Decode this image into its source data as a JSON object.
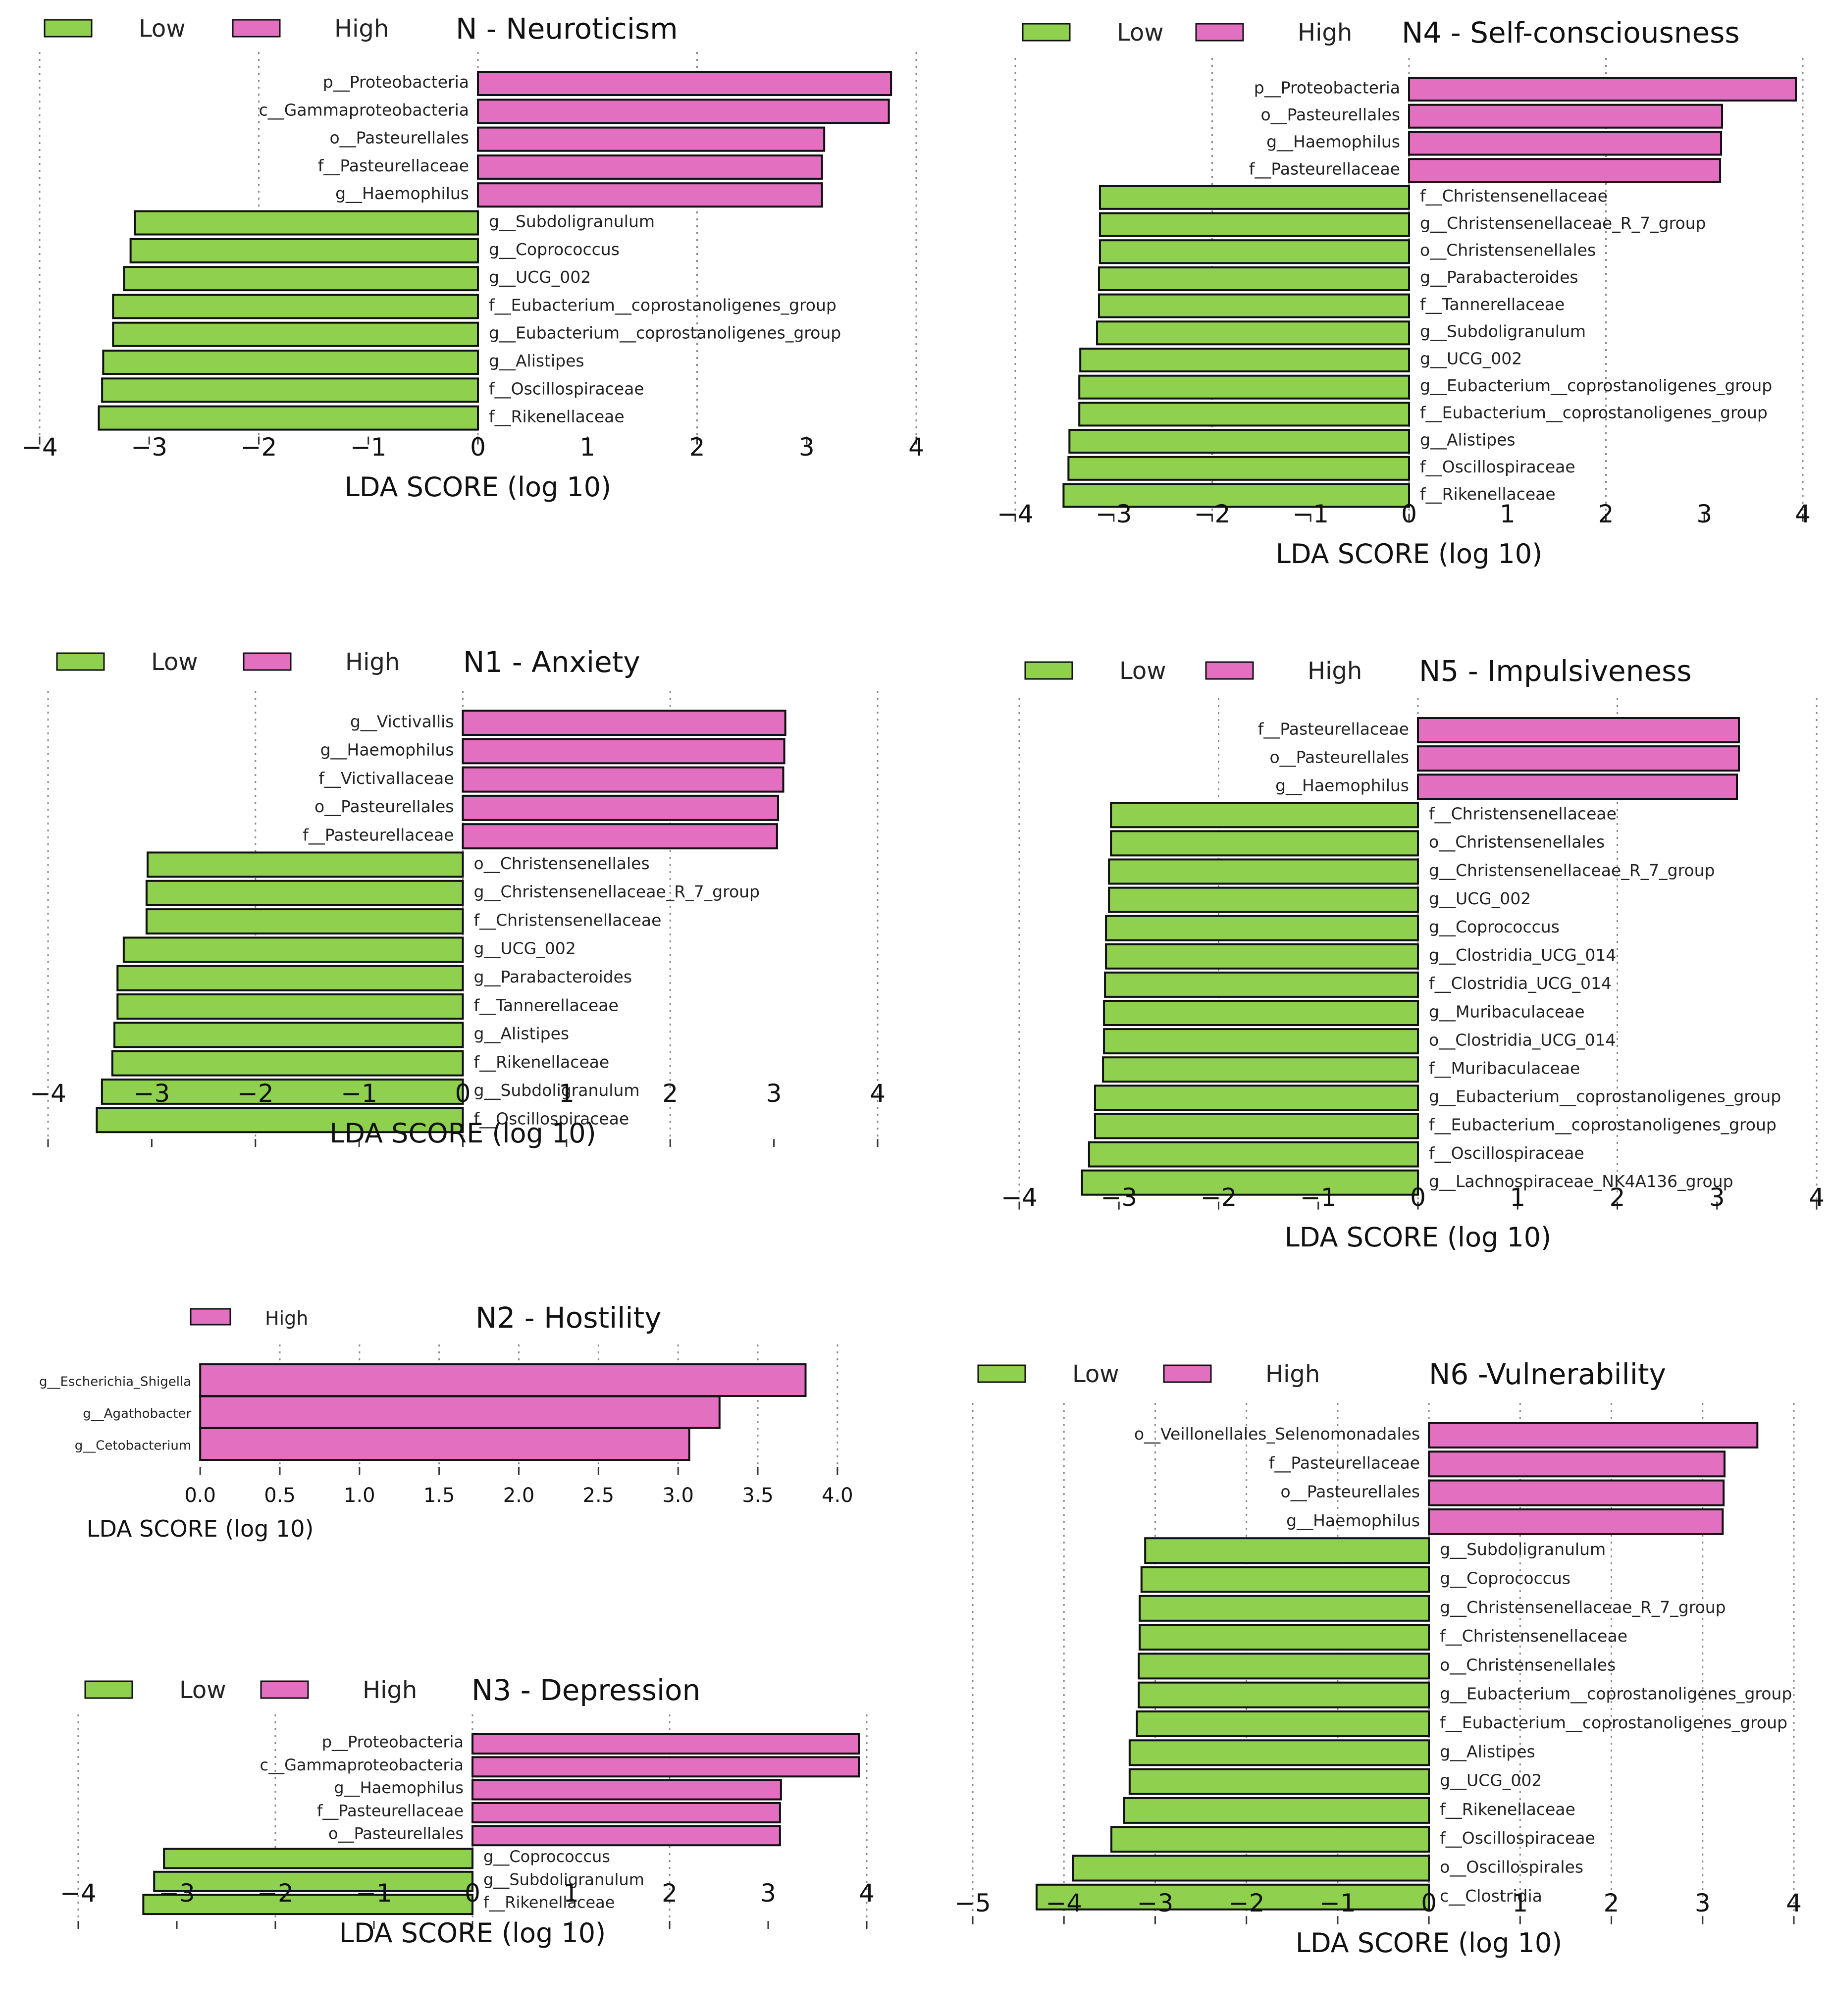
{
  "colors": {
    "low": "#8fd14f",
    "high": "#e26fbf",
    "edge": "#111111",
    "grid": "#888888"
  },
  "chart_data": [
    {
      "type": "bar",
      "title": "N - Neuroticism",
      "xlabel": "LDA SCORE (log 10)",
      "xlim": [
        -4,
        4
      ],
      "ticks": [
        -4,
        -3,
        -2,
        -1,
        0,
        1,
        2,
        3,
        4
      ],
      "tick_labels": [
        "−4",
        "−3",
        "−2",
        "−1",
        "0",
        "1",
        "2",
        "3",
        "4"
      ],
      "legend": [
        "Low",
        "High"
      ],
      "categories": [
        "p__Proteobacteria",
        "c__Gammaproteobacteria",
        "o__Pasteurellales",
        "f__Pasteurellaceae",
        "g__Haemophilus",
        "g__Subdoligranulum",
        "g__Coprococcus",
        "g__UCG_002",
        "f__Eubacterium__coprostanoligenes_group",
        "g__Eubacterium__coprostanoligenes_group",
        "g__Alistipes",
        "f__Oscillospiraceae",
        "f__Rikenellaceae"
      ],
      "values": [
        3.77,
        3.75,
        3.16,
        3.14,
        3.14,
        -3.13,
        -3.17,
        -3.23,
        -3.33,
        -3.33,
        -3.42,
        -3.43,
        -3.46
      ]
    },
    {
      "type": "bar",
      "title": "N4 - Self-consciousness",
      "xlabel": "LDA SCORE (log 10)",
      "xlim": [
        -4,
        4
      ],
      "ticks": [
        -4,
        -3,
        -2,
        -1,
        0,
        1,
        2,
        3,
        4
      ],
      "tick_labels": [
        "−4",
        "−3",
        "−2",
        "−1",
        "0",
        "1",
        "2",
        "3",
        "4"
      ],
      "legend": [
        "Low",
        "High"
      ],
      "categories": [
        "p__Proteobacteria",
        "o__Pasteurellales",
        "g__Haemophilus",
        "f__Pasteurellaceae",
        "f__Christensenellaceae",
        "g__Christensenellaceae_R_7_group",
        "o__Christensenellales",
        "g__Parabacteroides",
        "f__Tannerellaceae",
        "g__Subdoligranulum",
        "g__UCG_002",
        "g__Eubacterium__coprostanoligenes_group",
        "f__Eubacterium__coprostanoligenes_group",
        "g__Alistipes",
        "f__Oscillospiraceae",
        "f__Rikenellaceae"
      ],
      "values": [
        3.93,
        3.18,
        3.17,
        3.16,
        -3.14,
        -3.14,
        -3.14,
        -3.15,
        -3.15,
        -3.17,
        -3.34,
        -3.35,
        -3.35,
        -3.45,
        -3.46,
        -3.51
      ]
    },
    {
      "type": "bar",
      "title": "N1 - Anxiety",
      "xlabel": "LDA SCORE (log 10)",
      "xlim": [
        -4,
        4
      ],
      "ticks": [
        -4,
        -3,
        -2,
        -1,
        0,
        1,
        2,
        3,
        4
      ],
      "tick_labels": [
        "−4",
        "−3",
        "−2",
        "−1",
        "0",
        "1",
        "2",
        "3",
        "4"
      ],
      "legend": [
        "Low",
        "High"
      ],
      "categories": [
        "g__Victivallis",
        "g__Haemophilus",
        "f__Victivallaceae",
        "o__Pasteurellales",
        "f__Pasteurellaceae",
        "o__Christensenellales",
        "g__Christensenellaceae_R_7_group",
        "f__Christensenellaceae",
        "g__UCG_002",
        "g__Parabacteroides",
        "f__Tannerellaceae",
        "g__Alistipes",
        "f__Rikenellaceae",
        "g__Subdoligranulum",
        "f__Oscillospiraceae"
      ],
      "values": [
        3.11,
        3.1,
        3.09,
        3.04,
        3.03,
        -3.04,
        -3.05,
        -3.05,
        -3.27,
        -3.33,
        -3.33,
        -3.36,
        -3.38,
        -3.48,
        -3.53
      ]
    },
    {
      "type": "bar",
      "title": "N5 - Impulsiveness",
      "xlabel": "LDA SCORE (log 10)",
      "xlim": [
        -4,
        4
      ],
      "ticks": [
        -4,
        -3,
        -2,
        -1,
        0,
        1,
        2,
        3,
        4
      ],
      "tick_labels": [
        "−4",
        "−3",
        "−2",
        "−1",
        "0",
        "1",
        "2",
        "3",
        "4"
      ],
      "legend": [
        "Low",
        "High"
      ],
      "categories": [
        "f__Pasteurellaceae",
        "o__Pasteurellales",
        "g__Haemophilus",
        "f__Christensenellaceae",
        "o__Christensenellales",
        "g__Christensenellaceae_R_7_group",
        "g__UCG_002",
        "g__Coprococcus",
        "g__Clostridia_UCG_014",
        "f__Clostridia_UCG_014",
        "g__Muribaculaceae",
        "o__Clostridia_UCG_014",
        "f__Muribaculaceae",
        "g__Eubacterium__coprostanoligenes_group",
        "f__Eubacterium__coprostanoligenes_group",
        "f__Oscillospiraceae",
        "g__Lachnospiraceae_NK4A136_group"
      ],
      "values": [
        3.22,
        3.22,
        3.2,
        -3.08,
        -3.08,
        -3.1,
        -3.1,
        -3.13,
        -3.13,
        -3.14,
        -3.15,
        -3.15,
        -3.16,
        -3.24,
        -3.24,
        -3.3,
        -3.37
      ]
    },
    {
      "type": "bar",
      "title": "N2 - Hostility",
      "xlabel": "LDA SCORE (log 10)",
      "xlim": [
        -0.1,
        4.1
      ],
      "ticks": [
        0,
        0.5,
        1,
        1.5,
        2,
        2.5,
        3,
        3.5,
        4
      ],
      "tick_labels": [
        "0.0",
        "0.5",
        "1.0",
        "1.5",
        "2.0",
        "2.5",
        "3.0",
        "3.5",
        "4.0"
      ],
      "legend": [
        "High"
      ],
      "categories": [
        "g__Escherichia_Shigella",
        "g__Agathobacter",
        "g__Cetobacterium"
      ],
      "values": [
        3.8,
        3.26,
        3.07
      ]
    },
    {
      "type": "bar",
      "title": "N6 -Vulnerability",
      "xlabel": "LDA SCORE (log 10)",
      "xlim": [
        -5,
        4
      ],
      "ticks": [
        -5,
        -4,
        -3,
        -2,
        -1,
        0,
        1,
        2,
        3,
        4
      ],
      "tick_labels": [
        "−5",
        "−4",
        "−3",
        "−2",
        "−1",
        "0",
        "1",
        "2",
        "3",
        "4"
      ],
      "legend": [
        "Low",
        "High"
      ],
      "categories": [
        "o__Veillonellales_Selenomonadales",
        "f__Pasteurellaceae",
        "o__Pasteurellales",
        "g__Haemophilus",
        "g__Subdoligranulum",
        "g__Coprococcus",
        "g__Christensenellaceae_R_7_group",
        "f__Christensenellaceae",
        "o__Christensenellales",
        "g__Eubacterium__coprostanoligenes_group",
        "f__Eubacterium__coprostanoligenes_group",
        "g__Alistipes",
        "g__UCG_002",
        "f__Rikenellaceae",
        "f__Oscillospiraceae",
        "o__Oscillospirales",
        "c__Clostridia"
      ],
      "values": [
        3.6,
        3.24,
        3.23,
        3.22,
        -3.11,
        -3.15,
        -3.17,
        -3.17,
        -3.18,
        -3.18,
        -3.2,
        -3.28,
        -3.28,
        -3.34,
        -3.48,
        -3.9,
        -4.3
      ]
    },
    {
      "type": "bar",
      "title": "N3 - Depression",
      "xlabel": "LDA SCORE (log 10)",
      "xlim": [
        -4,
        4
      ],
      "ticks": [
        -4,
        -3,
        -2,
        -1,
        0,
        1,
        2,
        3,
        4
      ],
      "tick_labels": [
        "−4",
        "−3",
        "−2",
        "−1",
        "0",
        "1",
        "2",
        "3",
        "4"
      ],
      "legend": [
        "Low",
        "High"
      ],
      "categories": [
        "p__Proteobacteria",
        "c__Gammaproteobacteria",
        "g__Haemophilus",
        "f__Pasteurellaceae",
        "o__Pasteurellales",
        "g__Coprococcus",
        "g__Subdoligranulum",
        "f__Rikenellaceae"
      ],
      "values": [
        3.92,
        3.92,
        3.13,
        3.12,
        3.12,
        -3.13,
        -3.23,
        -3.34
      ]
    }
  ]
}
